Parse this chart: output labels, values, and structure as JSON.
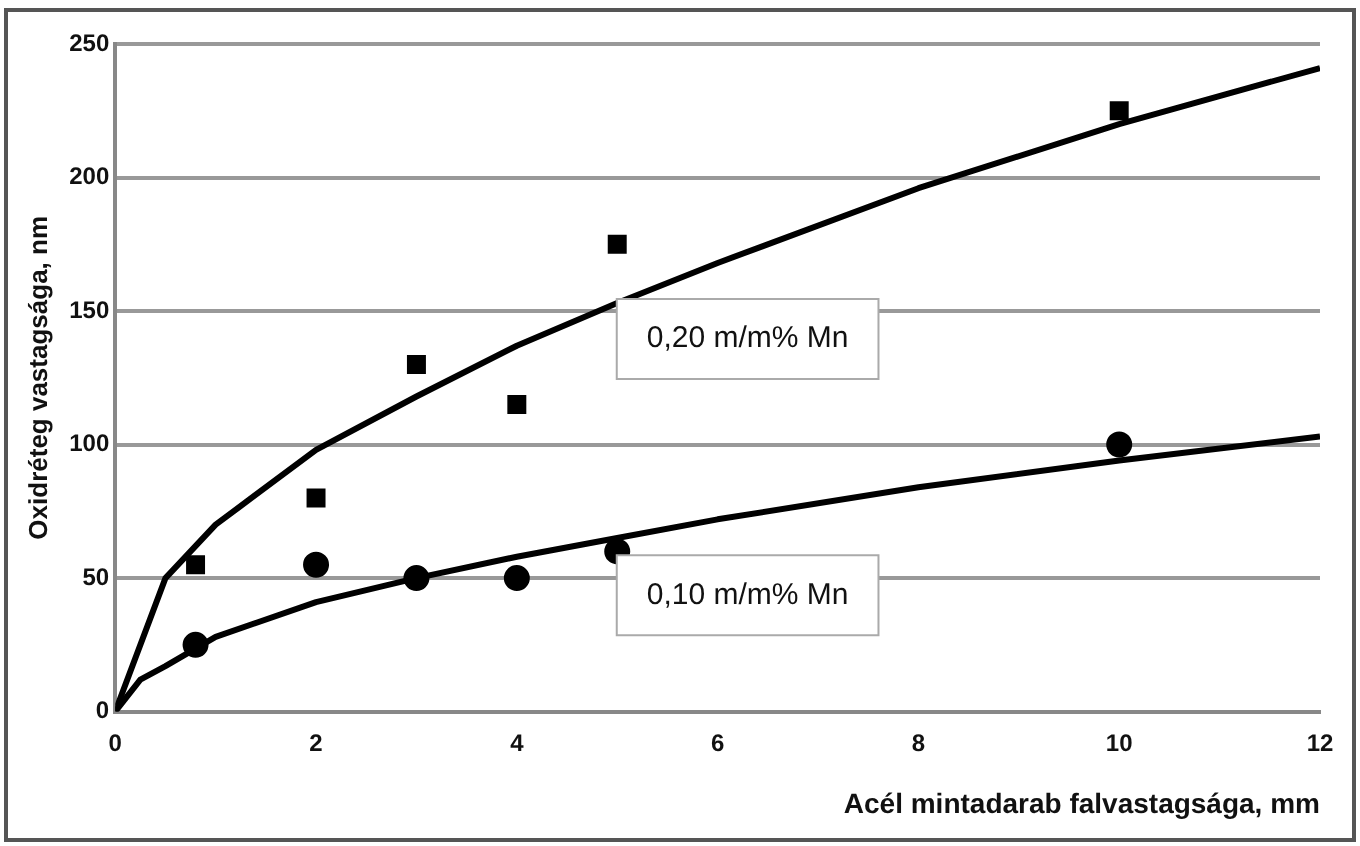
{
  "chart_data": {
    "type": "scatter",
    "xlabel": "Acél mintadarab falvastagsága, mm",
    "ylabel": "Oxidréteg vastagsága, nm",
    "xlim": [
      0,
      12
    ],
    "xticks": [
      0,
      2,
      4,
      6,
      8,
      10,
      12
    ],
    "ylim": [
      0,
      250
    ],
    "yticks": [
      0,
      50,
      100,
      150,
      200,
      250
    ],
    "grid": "y",
    "legend": false,
    "series": [
      {
        "marker": "square",
        "color": "#000000",
        "x": [
          0.8,
          2,
          3,
          4,
          5,
          10
        ],
        "values": [
          55,
          80,
          130,
          115,
          175,
          225
        ]
      },
      {
        "marker": "circle",
        "color": "#000000",
        "x": [
          0.8,
          2,
          3,
          4,
          5,
          10
        ],
        "values": [
          25,
          55,
          50,
          50,
          60,
          100
        ]
      },
      {
        "type": "line",
        "marker": "none",
        "name": "0,20 m/m% Mn",
        "color": "#000000",
        "x": [
          0,
          0.5,
          1,
          2,
          3,
          4,
          5,
          6,
          8,
          10,
          12
        ],
        "values": [
          0,
          50,
          70,
          98,
          118,
          137,
          153,
          168,
          196,
          220,
          241
        ]
      },
      {
        "type": "line",
        "marker": "none",
        "name": "0,10 m/m% Mn",
        "color": "#000000",
        "x": [
          0,
          0.25,
          0.5,
          1,
          2,
          3,
          4,
          5,
          6,
          8,
          10,
          12
        ],
        "values": [
          0,
          12,
          17,
          28,
          41,
          50,
          58,
          65,
          72,
          84,
          94,
          103
        ]
      }
    ]
  }
}
